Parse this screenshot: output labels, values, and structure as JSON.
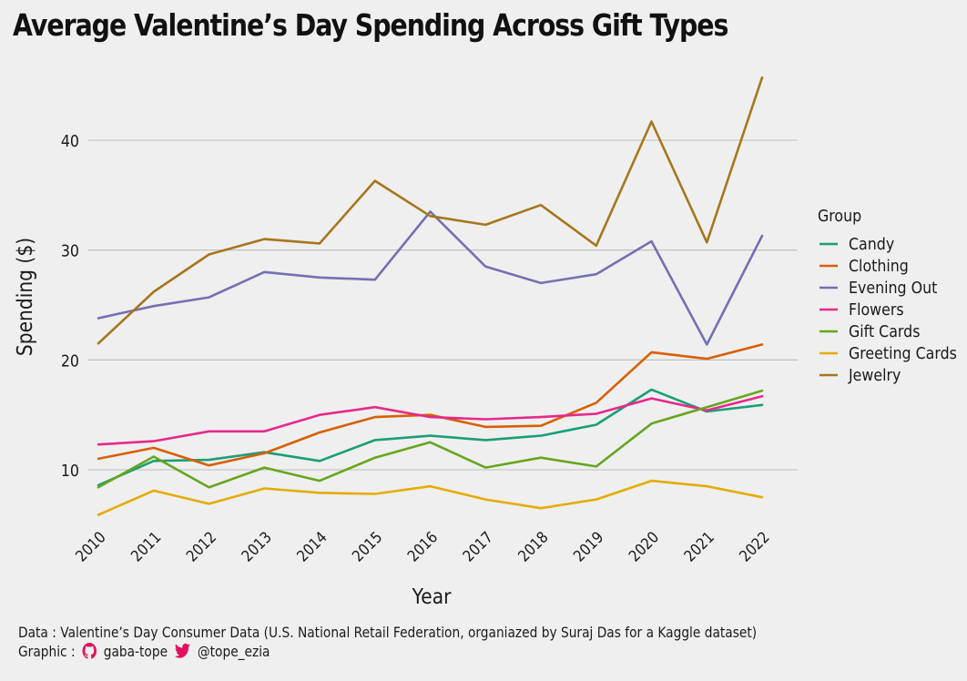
{
  "chart_data": {
    "type": "line",
    "title": "Average Valentine’s Day Spending Across Gift Types",
    "xlabel": "Year",
    "ylabel": "Spending ($)",
    "x": [
      2010,
      2011,
      2012,
      2013,
      2014,
      2015,
      2016,
      2017,
      2018,
      2019,
      2020,
      2021,
      2022
    ],
    "ylim": [
      5,
      46
    ],
    "yticks": [
      10,
      20,
      30,
      40
    ],
    "grid": "horizontal",
    "legend_title": "Group",
    "legend_position": "right",
    "series": [
      {
        "name": "Candy",
        "color": "#1b9e77",
        "values": [
          8.6,
          10.8,
          10.9,
          11.6,
          10.8,
          12.7,
          13.1,
          12.7,
          13.1,
          14.1,
          17.3,
          15.3,
          15.9
        ]
      },
      {
        "name": "Clothing",
        "color": "#d95f02",
        "values": [
          11.0,
          12.0,
          10.4,
          11.5,
          13.4,
          14.8,
          15.0,
          13.9,
          14.0,
          16.1,
          20.7,
          20.1,
          21.4
        ]
      },
      {
        "name": "Evening Out",
        "color": "#7570b3",
        "values": [
          23.8,
          24.9,
          25.7,
          28.0,
          27.5,
          27.3,
          33.5,
          28.5,
          27.0,
          27.8,
          30.8,
          21.4,
          31.3
        ]
      },
      {
        "name": "Flowers",
        "color": "#e7298a",
        "values": [
          12.3,
          12.6,
          13.5,
          13.5,
          15.0,
          15.7,
          14.8,
          14.6,
          14.8,
          15.1,
          16.5,
          15.4,
          16.7
        ]
      },
      {
        "name": "Gift Cards",
        "color": "#66a61e",
        "values": [
          8.4,
          11.2,
          8.4,
          10.2,
          9.0,
          11.1,
          12.5,
          10.2,
          11.1,
          10.3,
          14.2,
          15.7,
          17.2
        ]
      },
      {
        "name": "Greeting Cards",
        "color": "#e6ab02",
        "values": [
          5.9,
          8.1,
          6.9,
          8.3,
          7.9,
          7.8,
          8.5,
          7.3,
          6.5,
          7.3,
          9.0,
          8.5,
          7.5
        ]
      },
      {
        "name": "Jewelry",
        "color": "#a6761d",
        "values": [
          21.5,
          26.2,
          29.6,
          31.0,
          30.6,
          36.3,
          33.1,
          32.3,
          34.1,
          30.4,
          41.7,
          30.7,
          45.7
        ]
      }
    ]
  },
  "caption": {
    "data_line": "Data : Valentine’s Day Consumer Data (U.S. National Retail Federation, organiazed by Suraj Das for a Kaggle dataset)",
    "graphic_prefix": "Graphic :",
    "github_handle": "gaba-tope",
    "twitter_handle": "@tope_ezia",
    "github_icon": "github-icon",
    "twitter_icon": "twitter-icon",
    "github_color": "#e0115f",
    "twitter_color": "#e0115f"
  }
}
